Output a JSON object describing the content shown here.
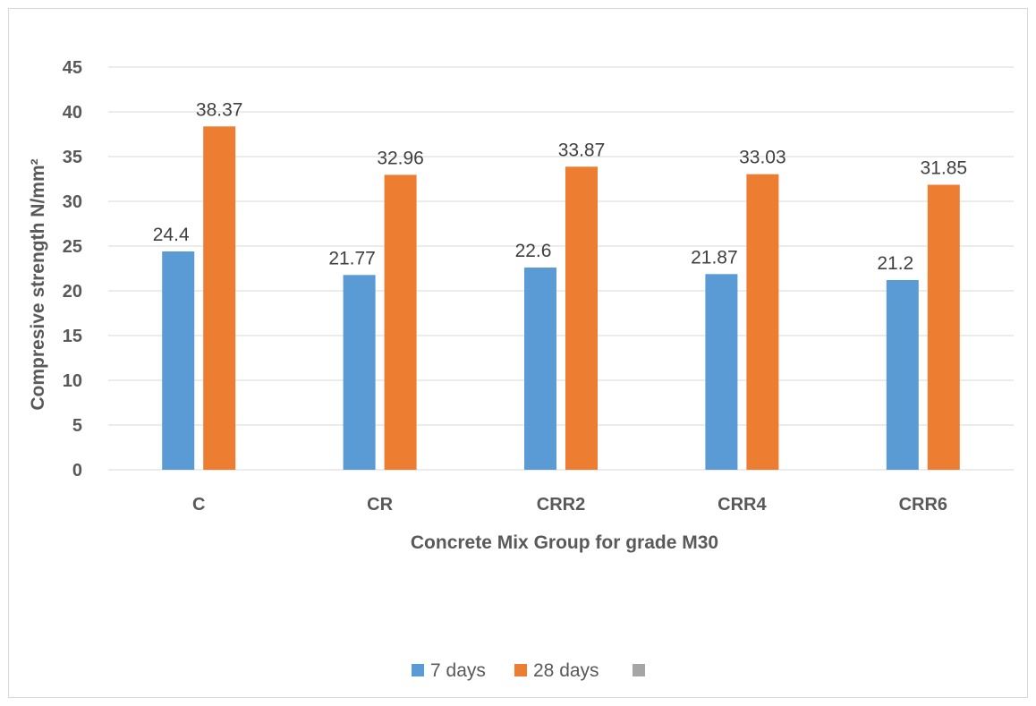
{
  "chart_data": {
    "type": "bar",
    "title": "",
    "xlabel": "Concrete  Mix Group for grade M30",
    "ylabel": "Compresive strength  N/mm²",
    "ylim": [
      0,
      45
    ],
    "yticks": [
      0,
      5,
      10,
      15,
      20,
      25,
      30,
      35,
      40,
      45
    ],
    "grid": true,
    "legend_position": "bottom",
    "categories": [
      "C",
      "CR",
      "CRR2",
      "CRR4",
      "CRR6"
    ],
    "series": [
      {
        "name": "7 days",
        "color": "#5b9bd5",
        "values": [
          24.4,
          21.77,
          22.6,
          21.87,
          21.2
        ],
        "labels": [
          "24.4",
          "21.77",
          "22.6",
          "21.87",
          "21.2"
        ]
      },
      {
        "name": "28 days",
        "color": "#ed7d31",
        "values": [
          38.37,
          32.96,
          33.87,
          33.03,
          31.85
        ],
        "labels": [
          "38.37",
          "32.96",
          "33.87",
          "33.03",
          "31.85"
        ]
      }
    ],
    "legend": [
      {
        "name": "7 days",
        "color": "#5b9bd5"
      },
      {
        "name": "28 days",
        "color": "#ed7d31"
      },
      {
        "name": "",
        "color": "#a5a5a5"
      }
    ]
  }
}
